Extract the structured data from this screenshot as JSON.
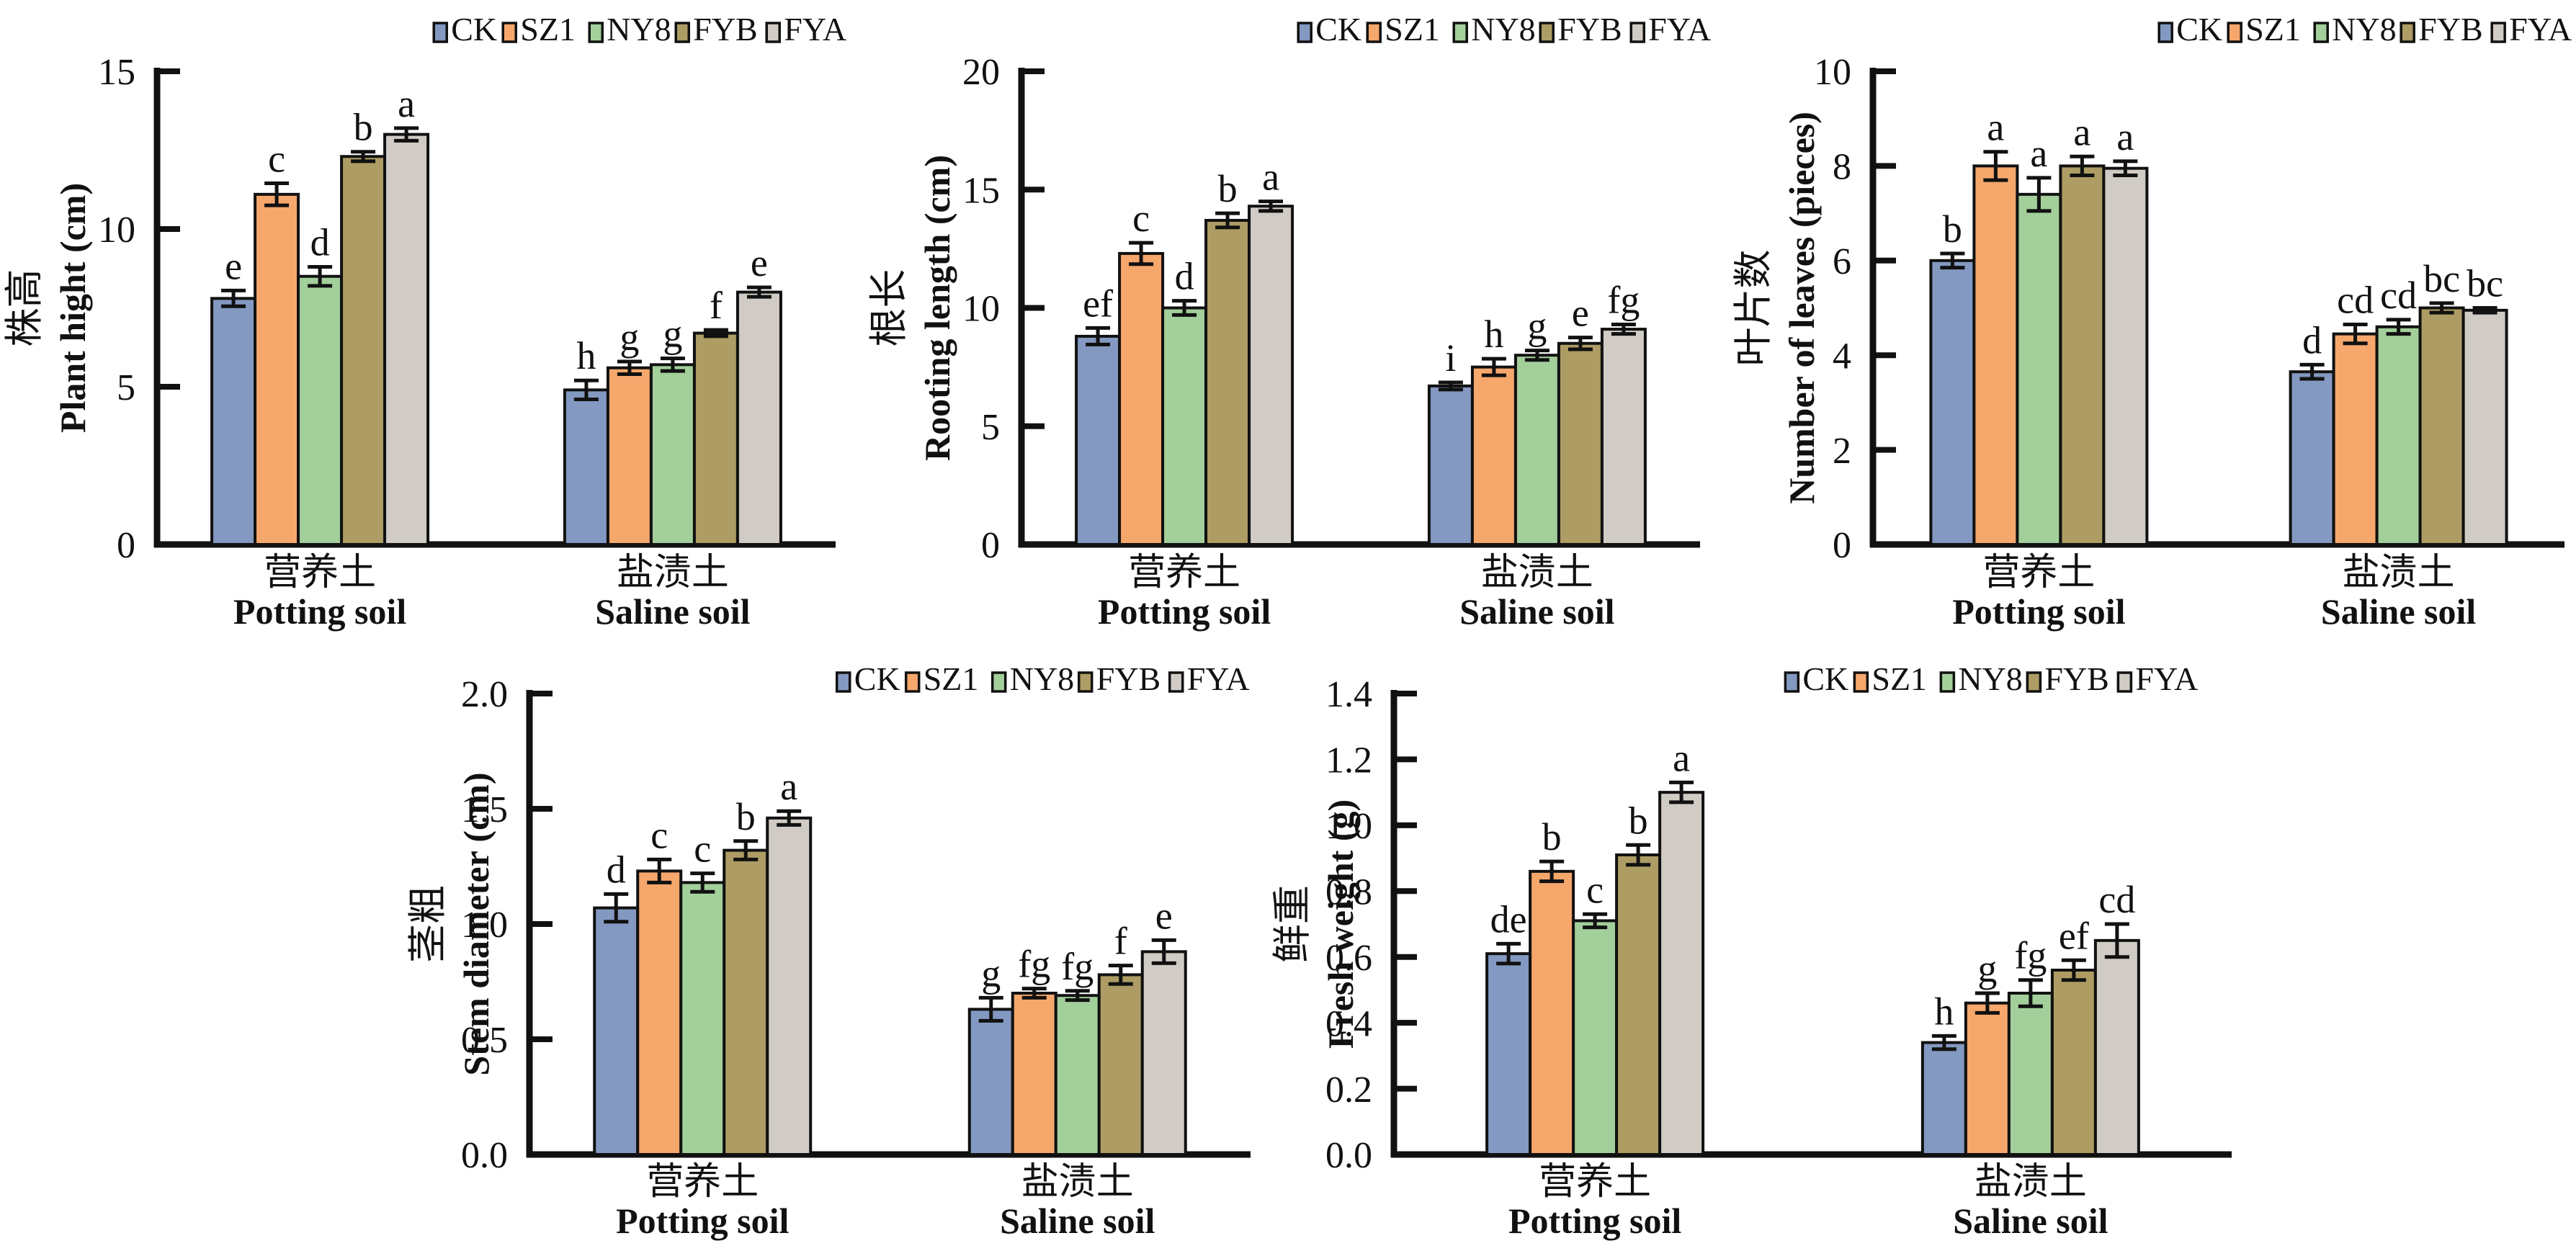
{
  "figure": {
    "background": "#ffffff",
    "axis_color": "#111111",
    "text_color": "#111111"
  },
  "legend": {
    "series": [
      {
        "name": "CK",
        "color": "#8399C1"
      },
      {
        "name": "SZ1",
        "color": "#F6A76C"
      },
      {
        "name": "NY8",
        "color": "#A3CF9B"
      },
      {
        "name": "FYB",
        "color": "#AD9D64"
      },
      {
        "name": "FYA",
        "color": "#D0CBC4"
      }
    ]
  },
  "categories": [
    {
      "cn": "营养土",
      "en": "Potting soil"
    },
    {
      "cn": "盐渍土",
      "en": "Saline soil"
    }
  ],
  "chart_data": [
    {
      "id": "plant-height",
      "type": "bar",
      "ylabel_cn": "株高",
      "ylabel_en": "Plant hight (cm)",
      "ylim": [
        0,
        15
      ],
      "yticks": [
        "0",
        "5",
        "10",
        "15"
      ],
      "grid": false,
      "legend_position": "top",
      "categories": [
        "营养土 Potting soil",
        "盐渍土 Saline soil"
      ],
      "series": [
        {
          "name": "CK",
          "values": [
            7.8,
            4.9
          ],
          "errors": [
            0.25,
            0.3
          ],
          "letters": [
            "e",
            "h"
          ]
        },
        {
          "name": "SZ1",
          "values": [
            11.1,
            5.6
          ],
          "errors": [
            0.35,
            0.2
          ],
          "letters": [
            "c",
            "g"
          ]
        },
        {
          "name": "NY8",
          "values": [
            8.5,
            5.7
          ],
          "errors": [
            0.3,
            0.2
          ],
          "letters": [
            "d",
            "g"
          ]
        },
        {
          "name": "FYB",
          "values": [
            12.3,
            6.7
          ],
          "errors": [
            0.15,
            0.1
          ],
          "letters": [
            "b",
            "f"
          ]
        },
        {
          "name": "FYA",
          "values": [
            13.0,
            8.0
          ],
          "errors": [
            0.2,
            0.15
          ],
          "letters": [
            "a",
            "e"
          ]
        }
      ]
    },
    {
      "id": "rooting-length",
      "type": "bar",
      "ylabel_cn": "根长",
      "ylabel_en": "Rooting length (cm)",
      "ylim": [
        0,
        20
      ],
      "yticks": [
        "0",
        "5",
        "10",
        "15",
        "20"
      ],
      "grid": false,
      "legend_position": "top",
      "categories": [
        "营养土 Potting soil",
        "盐渍土 Saline soil"
      ],
      "series": [
        {
          "name": "CK",
          "values": [
            8.8,
            6.7
          ],
          "errors": [
            0.35,
            0.15
          ],
          "letters": [
            "ef",
            "i"
          ]
        },
        {
          "name": "SZ1",
          "values": [
            12.3,
            7.5
          ],
          "errors": [
            0.45,
            0.35
          ],
          "letters": [
            "c",
            "h"
          ]
        },
        {
          "name": "NY8",
          "values": [
            10.0,
            8.0
          ],
          "errors": [
            0.3,
            0.2
          ],
          "letters": [
            "d",
            "g"
          ]
        },
        {
          "name": "FYB",
          "values": [
            13.7,
            8.5
          ],
          "errors": [
            0.3,
            0.25
          ],
          "letters": [
            "b",
            "e"
          ]
        },
        {
          "name": "FYA",
          "values": [
            14.3,
            9.1
          ],
          "errors": [
            0.2,
            0.2
          ],
          "letters": [
            "a",
            "fg"
          ]
        }
      ]
    },
    {
      "id": "number-of-leaves",
      "type": "bar",
      "ylabel_cn": "叶片数",
      "ylabel_en": "Number of leaves (pieces)",
      "ylim": [
        0,
        10
      ],
      "yticks": [
        "0",
        "2",
        "4",
        "6",
        "8",
        "10"
      ],
      "grid": false,
      "legend_position": "top",
      "categories": [
        "营养土 Potting soil",
        "盐渍土 Saline soil"
      ],
      "series": [
        {
          "name": "CK",
          "values": [
            6.0,
            3.65
          ],
          "errors": [
            0.15,
            0.15
          ],
          "letters": [
            "b",
            "d"
          ]
        },
        {
          "name": "SZ1",
          "values": [
            8.0,
            4.45
          ],
          "errors": [
            0.3,
            0.2
          ],
          "letters": [
            "a",
            "cd"
          ]
        },
        {
          "name": "NY8",
          "values": [
            7.4,
            4.6
          ],
          "errors": [
            0.35,
            0.15
          ],
          "letters": [
            "a",
            "cd"
          ]
        },
        {
          "name": "FYB",
          "values": [
            8.0,
            5.0
          ],
          "errors": [
            0.2,
            0.1
          ],
          "letters": [
            "a",
            "bc"
          ]
        },
        {
          "name": "FYA",
          "values": [
            7.95,
            4.95
          ],
          "errors": [
            0.15,
            0.05
          ],
          "letters": [
            "a",
            "bc"
          ]
        }
      ]
    },
    {
      "id": "stem-diameter",
      "type": "bar",
      "ylabel_cn": "茎粗",
      "ylabel_en": "Stem diameter (cm)",
      "ylim": [
        0,
        2.0
      ],
      "yticks": [
        "0.0",
        "0.5",
        "1.0",
        "1.5",
        "2.0"
      ],
      "grid": false,
      "legend_position": "top",
      "categories": [
        "营养土 Potting soil",
        "盐渍土 Saline soil"
      ],
      "series": [
        {
          "name": "CK",
          "values": [
            1.07,
            0.63
          ],
          "errors": [
            0.06,
            0.05
          ],
          "letters": [
            "d",
            "g"
          ]
        },
        {
          "name": "SZ1",
          "values": [
            1.23,
            0.7
          ],
          "errors": [
            0.05,
            0.02
          ],
          "letters": [
            "c",
            "fg"
          ]
        },
        {
          "name": "NY8",
          "values": [
            1.18,
            0.69
          ],
          "errors": [
            0.04,
            0.02
          ],
          "letters": [
            "c",
            "fg"
          ]
        },
        {
          "name": "FYB",
          "values": [
            1.32,
            0.78
          ],
          "errors": [
            0.04,
            0.04
          ],
          "letters": [
            "b",
            "f"
          ]
        },
        {
          "name": "FYA",
          "values": [
            1.46,
            0.88
          ],
          "errors": [
            0.03,
            0.05
          ],
          "letters": [
            "a",
            "e"
          ]
        }
      ]
    },
    {
      "id": "fresh-weight",
      "type": "bar",
      "ylabel_cn": "鲜重",
      "ylabel_en": "Fresh weight (g)",
      "ylim": [
        0,
        1.4
      ],
      "yticks": [
        "0.0",
        "0.2",
        "0.4",
        "0.6",
        "0.8",
        "1.0",
        "1.2",
        "1.4"
      ],
      "grid": false,
      "legend_position": "top",
      "categories": [
        "营养土 Potting soil",
        "盐渍土 Saline soil"
      ],
      "series": [
        {
          "name": "CK",
          "values": [
            0.61,
            0.34
          ],
          "errors": [
            0.03,
            0.02
          ],
          "letters": [
            "de",
            "h"
          ]
        },
        {
          "name": "SZ1",
          "values": [
            0.86,
            0.46
          ],
          "errors": [
            0.03,
            0.03
          ],
          "letters": [
            "b",
            "g"
          ]
        },
        {
          "name": "NY8",
          "values": [
            0.71,
            0.49
          ],
          "errors": [
            0.02,
            0.04
          ],
          "letters": [
            "c",
            "fg"
          ]
        },
        {
          "name": "FYB",
          "values": [
            0.91,
            0.56
          ],
          "errors": [
            0.03,
            0.03
          ],
          "letters": [
            "b",
            "ef"
          ]
        },
        {
          "name": "FYA",
          "values": [
            1.1,
            0.65
          ],
          "errors": [
            0.03,
            0.05
          ],
          "letters": [
            "a",
            "cd"
          ]
        }
      ]
    }
  ]
}
